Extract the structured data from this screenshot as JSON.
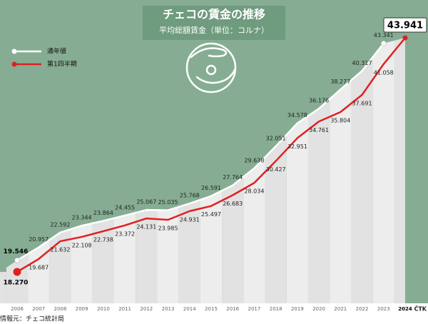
{
  "chart_data": {
    "type": "line",
    "title": "チェコの賃金の推移",
    "subtitle": "平均総額賃金（単位：コルナ）",
    "categories": [
      "2006",
      "2007",
      "2008",
      "2009",
      "2010",
      "2011",
      "2012",
      "2013",
      "2014",
      "2015",
      "2016",
      "2017",
      "2018",
      "2019",
      "2020",
      "2021",
      "2022",
      "2023",
      "2024"
    ],
    "series": [
      {
        "name": "通年値",
        "color": "#ffffff",
        "values": [
          19.546,
          20.957,
          22.592,
          23.344,
          23.864,
          24.455,
          25.067,
          25.035,
          25.768,
          26.591,
          27.764,
          29.638,
          32.051,
          34.578,
          36.176,
          38.277,
          40.317,
          43.341,
          null
        ],
        "value_labels": [
          "19.546",
          "20.957",
          "22.592",
          "23.344",
          "23.864",
          "24.455",
          "25.067",
          "25.035",
          "25.768",
          "26.591",
          "27.764",
          "29.638",
          "32.051",
          "34.578",
          "36.176",
          "38.277",
          "40.317",
          "43.341",
          null
        ]
      },
      {
        "name": "第1四半期",
        "color": "#e02020",
        "values": [
          18.27,
          19.687,
          21.632,
          22.108,
          22.738,
          23.372,
          24.131,
          23.985,
          24.931,
          25.497,
          26.683,
          28.034,
          30.427,
          32.951,
          34.761,
          35.804,
          37.691,
          41.058,
          43.941
        ],
        "value_labels": [
          "18.270",
          "19.687",
          "21.632",
          "22.108",
          "22.738",
          "23.372",
          "24.131",
          "23.985",
          "24.931",
          "25.497",
          "26.683",
          "28.034",
          "30.427",
          "32.951",
          "34.761",
          "35.804",
          "37.691",
          "41.058",
          "43.941"
        ]
      }
    ],
    "legend": "upper left",
    "source": "情報元：チェコ統計局",
    "credit": "ČTK"
  }
}
